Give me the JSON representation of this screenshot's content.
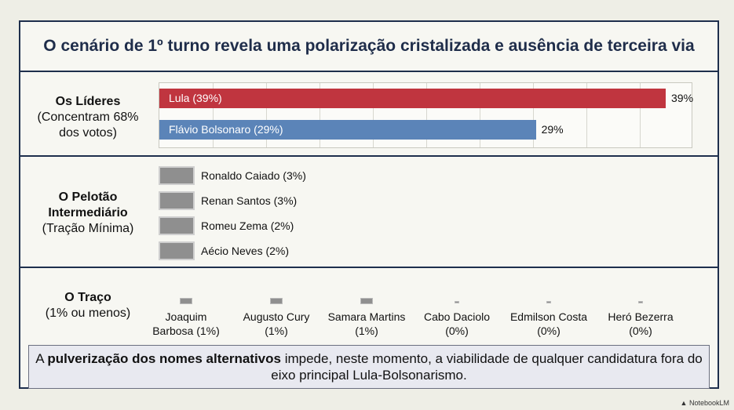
{
  "title": "O cenário de 1º turno revela uma polarização cristalizada e ausência de terceira via",
  "sections": {
    "leaders": {
      "title": "Os Líderes",
      "subtitle_1": "(Concentram 68%",
      "subtitle_2": "dos votos)"
    },
    "middle": {
      "title_1": "O Pelotão",
      "title_2": "Intermediário",
      "subtitle": "(Tração Mínima)"
    },
    "trace": {
      "title": "O Traço",
      "subtitle": "(1% ou menos)"
    }
  },
  "chart_data": {
    "type": "bar",
    "leaders": [
      {
        "label": "Lula (39%)",
        "value": 39,
        "value_label": "39%",
        "color": "#c0353f"
      },
      {
        "label": "Flávio Bolsonaro (29%)",
        "value": 29,
        "value_label": "29%",
        "color": "#5b84b8"
      }
    ],
    "middle": [
      {
        "label": "Ronaldo Caiado (3%)",
        "value": 3
      },
      {
        "label": "Renan Santos (3%)",
        "value": 3
      },
      {
        "label": "Romeu Zema (2%)",
        "value": 2
      },
      {
        "label": "Aécio Neves (2%)",
        "value": 2
      }
    ],
    "trace": [
      {
        "name": "Joaquim",
        "name_2": "Barbosa (1%)",
        "value": 1
      },
      {
        "name": "Augusto Cury",
        "name_2": "(1%)",
        "value": 1
      },
      {
        "name": "Samara Martins",
        "name_2": "(1%)",
        "value": 1
      },
      {
        "name": "Cabo Daciolo",
        "name_2": "(0%)",
        "value": 0
      },
      {
        "name": "Edmilson Costa",
        "name_2": "(0%)",
        "value": 0
      },
      {
        "name": "Heró Bezerra",
        "name_2": "(0%)",
        "value": 0
      }
    ],
    "xlim": [
      0,
      40
    ],
    "grid": true
  },
  "callout": {
    "prefix": "A ",
    "bold": "pulverização dos nomes alternativos",
    "suffix": " impede, neste momento, a viabilidade de qualquer candidatura fora do eixo principal Lula-Bolsonarismo."
  },
  "watermark": "NotebookLM"
}
